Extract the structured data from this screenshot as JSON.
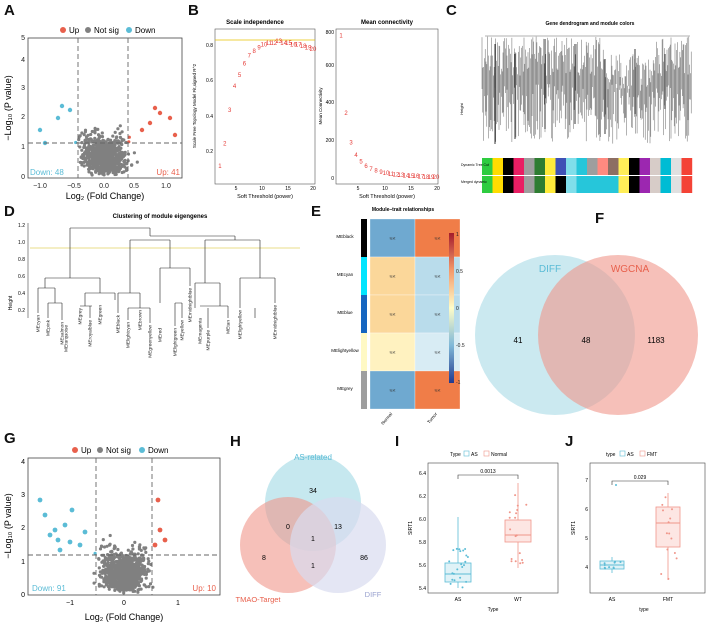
{
  "panels": {
    "a": "A",
    "b": "B",
    "c": "C",
    "d": "D",
    "e": "E",
    "f": "F",
    "g": "G",
    "h": "H",
    "i": "I",
    "j": "J"
  },
  "volcano_a": {
    "legend": [
      "Up",
      "Not sig",
      "Down"
    ],
    "ylabel": "−Log₁₀ (P value)",
    "xlabel": "Log₂ (Fold Change)",
    "down_label": "Down: 48",
    "up_label": "Up: 41",
    "xticks": [
      "−1.0",
      "−0.5",
      "0.0",
      "0.5",
      "1.0"
    ],
    "yticks": [
      "0",
      "1",
      "2",
      "3",
      "4",
      "5"
    ],
    "colors": {
      "up": "#e8604c",
      "notsig": "#808080",
      "down": "#5bbcd6"
    }
  },
  "scale_independence": {
    "title": "Scale independence",
    "ylabel": "Scale Free Topology Model Fit,signed R^2",
    "xlabel": "Soft Threshold (power)",
    "xticks": [
      "5",
      "10",
      "15",
      "20"
    ],
    "yticks": [
      "0.2",
      "0.4",
      "0.6",
      "0.8"
    ]
  },
  "mean_connectivity": {
    "title": "Mean connectivity",
    "ylabel": "Mean Connectivity",
    "xlabel": "Soft Threshold (power)",
    "xticks": [
      "5",
      "10",
      "15",
      "20"
    ],
    "yticks": [
      "0",
      "200",
      "400",
      "600",
      "800"
    ]
  },
  "dendrogram_c": {
    "title": "Gene dendrogram and module colors",
    "ylabel": "Height",
    "row1": "Dynamic Tree Cut",
    "row2": "Merged dynamic"
  },
  "eigengene_d": {
    "title": "Clustering of module eigengenes",
    "ylabel": "Height",
    "yticks": [
      "0.2",
      "0.4",
      "0.6",
      "0.8",
      "1.0",
      "1.2"
    ],
    "leaves": [
      "MEcyan",
      "MEpink",
      "MEsalmon",
      "MEturquoise",
      "MEgrey",
      "MEroyalblue",
      "MEgreen",
      "MEblack",
      "MElightcyan",
      "MEbrown",
      "MEgreenyellow",
      "MEred",
      "MElightgreen",
      "MEyellow",
      "MEmidnightblue",
      "MEpurple",
      "MEmagenta",
      "MEtan",
      "MElightyellow",
      "MEmidnightblue"
    ]
  },
  "heatmap_e": {
    "title": "Module–trait relationships",
    "rows": [
      "MEblack",
      "MEcyan",
      "MEblue",
      "MElightyellow",
      "MEgrey"
    ],
    "cols": [
      "Normal",
      "Tumor"
    ],
    "colorbar": [
      "1",
      "0.5",
      "0",
      "-0.5",
      "-1"
    ],
    "cell_text": "text"
  },
  "venn_f": {
    "left_label": "DIFF",
    "right_label": "WGCNA",
    "left_only": "41",
    "overlap": "48",
    "right_only": "1183"
  },
  "volcano_g": {
    "legend": [
      "Up",
      "Not sig",
      "Down"
    ],
    "ylabel": "−Log₁₀ (P value)",
    "xlabel": "Log₂ (Fold Change)",
    "down_label": "Down: 91",
    "up_label": "Up: 10",
    "xticks": [
      "−1",
      "0",
      "1"
    ],
    "yticks": [
      "0",
      "1",
      "2",
      "3",
      "4"
    ]
  },
  "venn_h": {
    "top_label": "AS-related",
    "left_label": "TMAO-Target",
    "right_label": "DIFF",
    "top_only": "34",
    "left_only": "8",
    "right_only": "86",
    "top_left": "0",
    "top_right": "13",
    "center": "1",
    "left_right": "1"
  },
  "box_i": {
    "legend_title": "Type",
    "legend": [
      "AS",
      "Normal"
    ],
    "pvalue": "0.0013",
    "ylabel": "SIRT1",
    "xlabel": "Type",
    "xticks": [
      "AS",
      "WT"
    ],
    "yticks": [
      "5.4",
      "5.6",
      "5.8",
      "6.0",
      "6.2",
      "6.4"
    ]
  },
  "box_j": {
    "legend_title": "type",
    "legend": [
      "AS",
      "FMT"
    ],
    "pvalue": "0.029",
    "ylabel": "SIRT1",
    "xlabel": "type",
    "xticks": [
      "AS",
      "FMT"
    ],
    "yticks": [
      "4",
      "5",
      "6",
      "7"
    ]
  }
}
